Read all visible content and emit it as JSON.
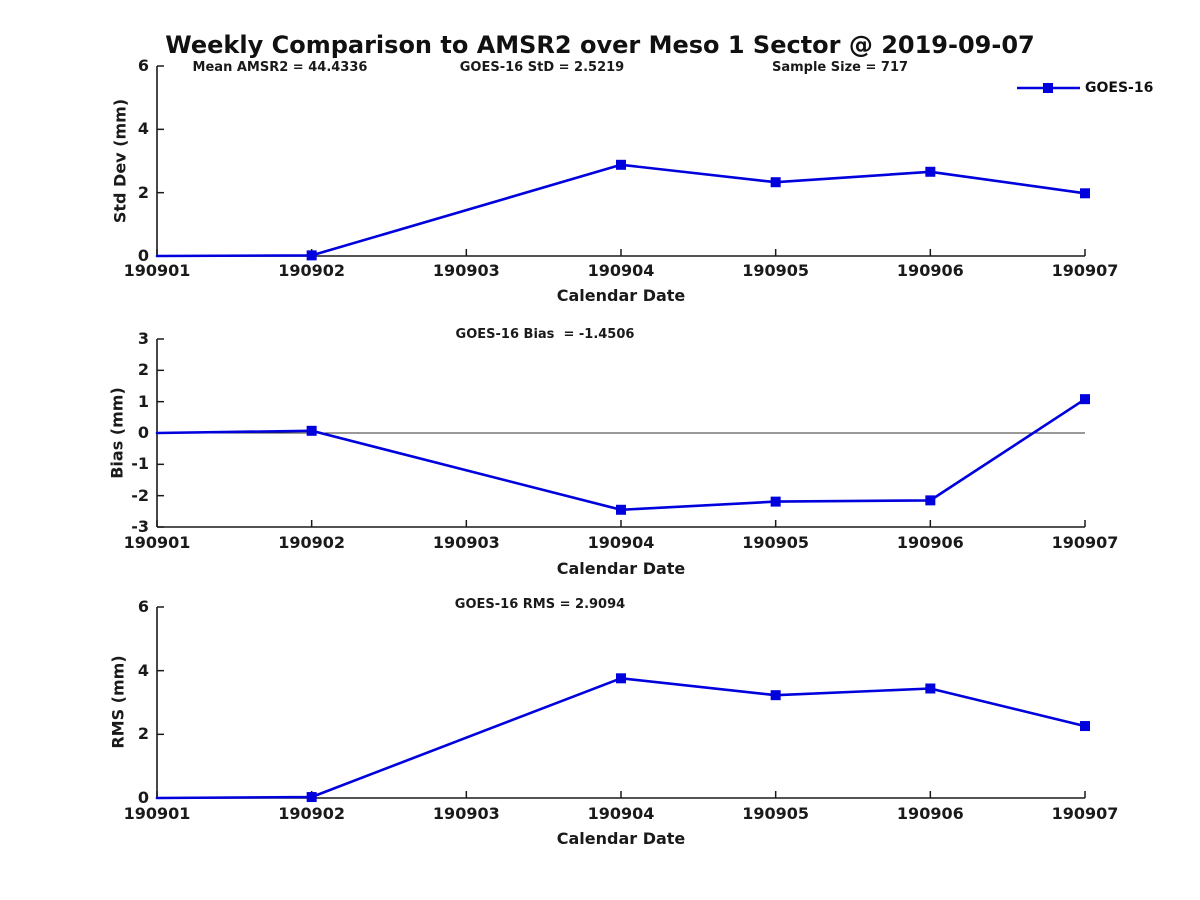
{
  "title": "Weekly Comparison to AMSR2 over Meso 1 Sector @ 2019-09-07",
  "legend": {
    "label": "GOES-16",
    "color": "#0101dd"
  },
  "chart_data": [
    {
      "type": "line",
      "panel": "std_dev",
      "annotations": [
        {
          "text": "Mean AMSR2 = 44.4336"
        },
        {
          "text": "GOES-16 StD = 2.5219"
        },
        {
          "text": "Sample Size = 717"
        }
      ],
      "ylabel": "Std Dev (mm)",
      "xlabel": "Calendar Date",
      "ylim": [
        0,
        6
      ],
      "yticks": [
        0,
        2,
        4,
        6
      ],
      "zero_line": false,
      "x_categories": [
        "190901",
        "190902",
        "190903",
        "190904",
        "190905",
        "190906",
        "190907"
      ],
      "series": [
        {
          "name": "GOES-16",
          "color": "#0101dd",
          "points": [
            {
              "x": "190901",
              "y": 0.0,
              "marker": false
            },
            {
              "x": "190902",
              "y": 0.02,
              "marker": true
            },
            {
              "x": "190904",
              "y": 2.88,
              "marker": true
            },
            {
              "x": "190905",
              "y": 2.33,
              "marker": true
            },
            {
              "x": "190906",
              "y": 2.66,
              "marker": true
            },
            {
              "x": "190907",
              "y": 1.98,
              "marker": true
            }
          ]
        }
      ]
    },
    {
      "type": "line",
      "panel": "bias",
      "annotations": [
        {
          "text": "GOES-16 Bias  = -1.4506"
        }
      ],
      "ylabel": "Bias (mm)",
      "xlabel": "Calendar Date",
      "ylim": [
        -3,
        3
      ],
      "yticks": [
        3,
        2,
        1,
        0,
        -1,
        -2,
        -3
      ],
      "zero_line": true,
      "x_categories": [
        "190901",
        "190902",
        "190903",
        "190904",
        "190905",
        "190906",
        "190907"
      ],
      "series": [
        {
          "name": "GOES-16",
          "color": "#0101dd",
          "points": [
            {
              "x": "190901",
              "y": 0.0,
              "marker": false
            },
            {
              "x": "190902",
              "y": 0.07,
              "marker": true
            },
            {
              "x": "190904",
              "y": -2.45,
              "marker": true
            },
            {
              "x": "190905",
              "y": -2.19,
              "marker": true
            },
            {
              "x": "190906",
              "y": -2.15,
              "marker": true
            },
            {
              "x": "190907",
              "y": 1.08,
              "marker": true
            }
          ]
        }
      ]
    },
    {
      "type": "line",
      "panel": "rms",
      "annotations": [
        {
          "text": "GOES-16 RMS = 2.9094"
        }
      ],
      "ylabel": "RMS (mm)",
      "xlabel": "Calendar Date",
      "ylim": [
        0,
        6
      ],
      "yticks": [
        0,
        2,
        4,
        6
      ],
      "zero_line": false,
      "x_categories": [
        "190901",
        "190902",
        "190903",
        "190904",
        "190905",
        "190906",
        "190907"
      ],
      "series": [
        {
          "name": "GOES-16",
          "color": "#0101dd",
          "points": [
            {
              "x": "190901",
              "y": 0.0,
              "marker": false
            },
            {
              "x": "190902",
              "y": 0.03,
              "marker": true
            },
            {
              "x": "190904",
              "y": 3.76,
              "marker": true
            },
            {
              "x": "190905",
              "y": 3.23,
              "marker": true
            },
            {
              "x": "190906",
              "y": 3.44,
              "marker": true
            },
            {
              "x": "190907",
              "y": 2.26,
              "marker": true
            }
          ]
        }
      ]
    }
  ]
}
